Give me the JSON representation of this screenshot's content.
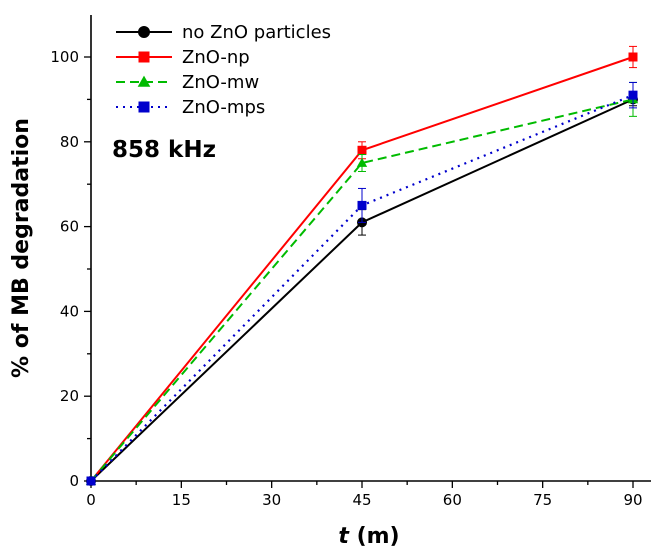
{
  "chart_data": {
    "type": "line",
    "title": "",
    "annotation": "858 kHz",
    "xlabel_var": "t",
    "xlabel_unit": "(m)",
    "ylabel": "% of MB degradation",
    "xlim": [
      0,
      91
    ],
    "ylim": [
      0,
      110
    ],
    "xticks": [
      "0",
      "15",
      "30",
      "45",
      "60",
      "75",
      "90"
    ],
    "yticks": [
      "0",
      "20",
      "40",
      "60",
      "80",
      "100"
    ],
    "x": [
      0,
      45,
      90
    ],
    "legend_position": "top-left",
    "series": [
      {
        "name": "no ZnO particles",
        "values": [
          0,
          61,
          90
        ],
        "errors": [
          0,
          3,
          1.5
        ],
        "color": "#000000",
        "marker": "circle",
        "dash": "solid"
      },
      {
        "name": "ZnO-np",
        "values": [
          0,
          78,
          100
        ],
        "errors": [
          0,
          2,
          2.5
        ],
        "color": "#ff0000",
        "marker": "square",
        "dash": "solid"
      },
      {
        "name": "ZnO-mw",
        "values": [
          0,
          75,
          90
        ],
        "errors": [
          0,
          2,
          4
        ],
        "color": "#00bb00",
        "marker": "triangle",
        "dash": "dashed"
      },
      {
        "name": "ZnO-mps",
        "values": [
          0,
          65,
          91
        ],
        "errors": [
          0,
          4,
          3
        ],
        "color": "#0000cc",
        "marker": "square",
        "dash": "dotted"
      }
    ]
  }
}
